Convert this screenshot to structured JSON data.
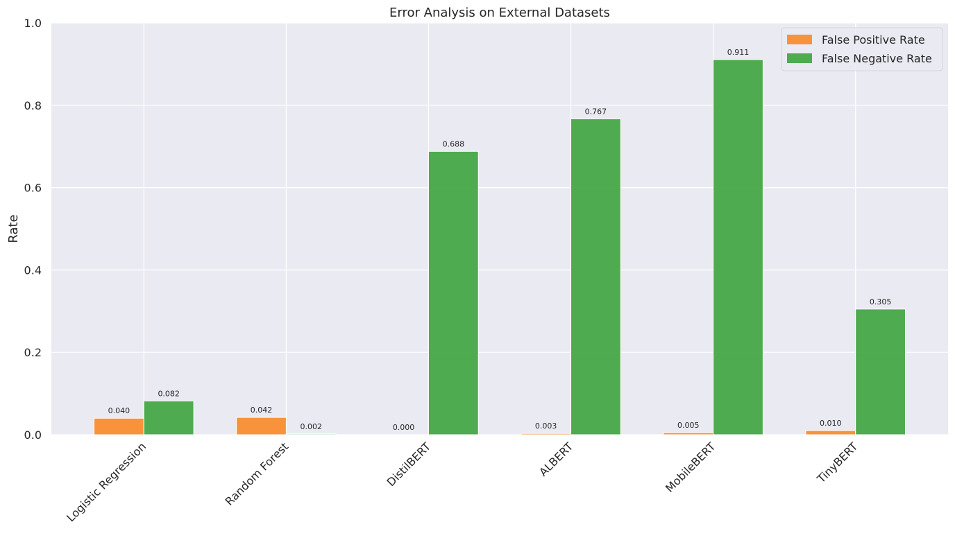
{
  "chart_data": {
    "type": "bar",
    "title": "Error Analysis on External Datasets",
    "xlabel": "",
    "ylabel": "Rate",
    "ylim": [
      0,
      1.0
    ],
    "yticks": [
      "0.0",
      "0.2",
      "0.4",
      "0.6",
      "0.8",
      "1.0"
    ],
    "ytick_values": [
      0,
      0.2,
      0.4,
      0.6,
      0.8,
      1.0
    ],
    "categories": [
      "Logistic Regression",
      "Random Forest",
      "DistilBERT",
      "ALBERT",
      "MobileBERT",
      "TinyBERT"
    ],
    "series": [
      {
        "name": "False Positive Rate",
        "color": "#f98e30",
        "values": [
          0.04,
          0.042,
          0.0,
          0.003,
          0.005,
          0.01
        ],
        "labels": [
          "0.040",
          "0.042",
          "0.000",
          "0.003",
          "0.005",
          "0.010"
        ]
      },
      {
        "name": "False Negative Rate",
        "color": "#46a846",
        "values": [
          0.082,
          0.002,
          0.688,
          0.767,
          0.911,
          0.305
        ],
        "labels": [
          "0.082",
          "0.002",
          "0.688",
          "0.767",
          "0.911",
          "0.305"
        ]
      }
    ],
    "grid": true,
    "legend_position": "top-right",
    "background": "#eaeaf2"
  }
}
